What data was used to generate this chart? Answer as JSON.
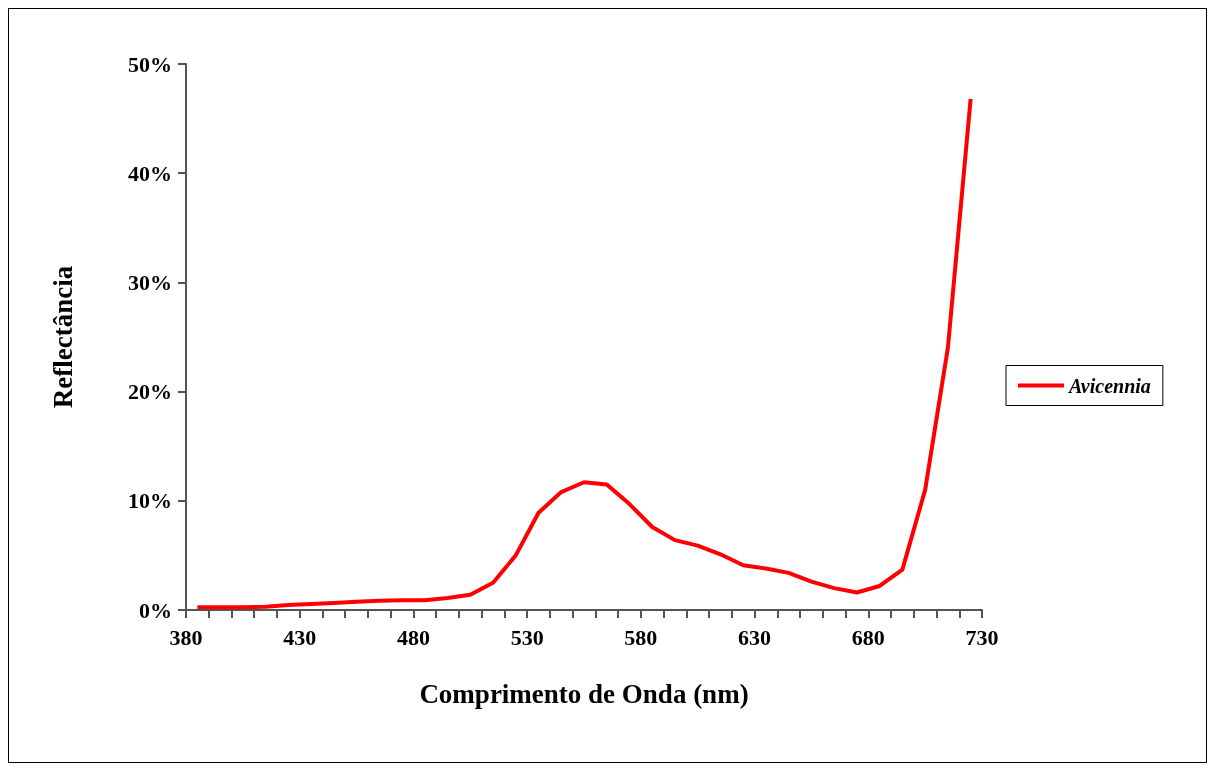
{
  "chart_data": {
    "type": "line",
    "xlabel": "Comprimento de Onda (nm)",
    "ylabel": "Reflectância",
    "x": [
      385,
      395,
      405,
      415,
      425,
      435,
      445,
      455,
      465,
      475,
      485,
      495,
      505,
      515,
      525,
      535,
      545,
      555,
      565,
      575,
      585,
      595,
      605,
      615,
      625,
      635,
      645,
      655,
      665,
      675,
      685,
      695,
      705,
      715,
      725
    ],
    "series": [
      {
        "name": "Avicennia",
        "color": "#ff0000",
        "values": [
          0.25,
          0.25,
          0.25,
          0.3,
          0.45,
          0.55,
          0.65,
          0.75,
          0.85,
          0.9,
          0.9,
          1.1,
          1.4,
          2.5,
          5.0,
          8.9,
          10.8,
          11.7,
          11.5,
          9.7,
          7.6,
          6.4,
          5.9,
          5.1,
          4.1,
          3.8,
          3.4,
          2.6,
          2.0,
          1.6,
          2.2,
          3.7,
          11.0,
          24,
          46.8
        ]
      }
    ],
    "xlim": [
      380,
      730
    ],
    "xticks": [
      380,
      {
        "value": 390,
        "label": null
      },
      {
        "value": 400,
        "label": null
      },
      {
        "value": 410,
        "label": null
      },
      {
        "value": 420,
        "label": null
      },
      430,
      {
        "value": 440,
        "label": null
      },
      {
        "value": 450,
        "label": null
      },
      {
        "value": 460,
        "label": null
      },
      {
        "value": 470,
        "label": null
      },
      480,
      {
        "value": 490,
        "label": null
      },
      {
        "value": 500,
        "label": null
      },
      {
        "value": 510,
        "label": null
      },
      {
        "value": 520,
        "label": null
      },
      530,
      {
        "value": 540,
        "label": null
      },
      {
        "value": 550,
        "label": null
      },
      {
        "value": 560,
        "label": null
      },
      {
        "value": 570,
        "label": null
      },
      580,
      {
        "value": 590,
        "label": null
      },
      {
        "value": 600,
        "label": null
      },
      {
        "value": 610,
        "label": null
      },
      {
        "value": 620,
        "label": null
      },
      630,
      {
        "value": 640,
        "label": null
      },
      {
        "value": 650,
        "label": null
      },
      {
        "value": 660,
        "label": null
      },
      {
        "value": 670,
        "label": null
      },
      680,
      {
        "value": 690,
        "label": null
      },
      {
        "value": 700,
        "label": null
      },
      {
        "value": 710,
        "label": null
      },
      {
        "value": 720,
        "label": null
      },
      730
    ],
    "ylim": [
      0,
      50
    ],
    "yticks": [
      {
        "value": 0,
        "label": "0%"
      },
      {
        "value": 10,
        "label": "10%"
      },
      {
        "value": 20,
        "label": "20%"
      },
      {
        "value": 30,
        "label": "30%"
      },
      {
        "value": 40,
        "label": "40%"
      },
      {
        "value": 50,
        "label": "50%"
      }
    ],
    "grid": false,
    "legend": "right",
    "marker": "none",
    "line_style": "solid"
  }
}
